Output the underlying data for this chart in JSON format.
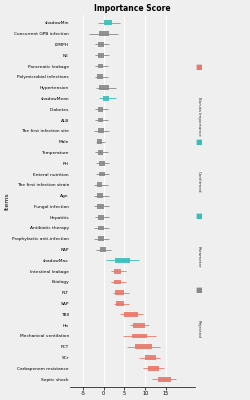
{
  "title": "Importance Score",
  "items": [
    "shadowMin",
    "Concurrent GPB infection",
    "LYMPH",
    "NE",
    "Pancreatic leakage",
    "Polymicrobial infections",
    "Hypertension",
    "shadowMean",
    "Diabetes",
    "ALB",
    "The first infection site",
    "Male",
    "Temperature",
    "PH",
    "Enteral nutrition",
    "The first infection strain",
    "Age",
    "Fungal infection",
    "Hepatitis",
    "Antibiotic therapy",
    "Prophylactic anti-infection",
    "RAP",
    "shadowMax",
    "Intestinal leakage",
    "Etiology",
    "PLT",
    "SAP",
    "TBII",
    "Hb",
    "Mechanical ventilation",
    "PCT",
    "SCr",
    "Carbapenem resistance",
    "Septic shock"
  ],
  "box_centers": [
    3.0,
    2.5,
    2.2,
    2.2,
    2.1,
    2.1,
    2.5,
    2.8,
    2.1,
    2.1,
    2.2,
    2.0,
    2.1,
    2.3,
    2.3,
    2.0,
    2.1,
    2.1,
    2.2,
    2.2,
    2.2,
    2.4,
    4.8,
    4.2,
    4.2,
    4.4,
    4.5,
    5.8,
    6.8,
    6.8,
    7.3,
    8.1,
    8.5,
    9.8
  ],
  "box_widths": [
    1.0,
    1.2,
    0.7,
    0.7,
    0.6,
    0.7,
    1.2,
    0.7,
    0.6,
    0.6,
    0.8,
    0.5,
    0.6,
    0.7,
    0.7,
    0.6,
    0.7,
    0.8,
    0.7,
    0.7,
    0.7,
    0.7,
    1.8,
    0.9,
    0.9,
    1.0,
    1.0,
    1.6,
    1.4,
    1.8,
    2.0,
    1.3,
    1.3,
    1.6
  ],
  "whisker_low": [
    1.8,
    0.8,
    1.5,
    1.5,
    1.5,
    1.5,
    1.6,
    2.0,
    1.5,
    1.5,
    1.4,
    1.6,
    1.5,
    1.6,
    1.6,
    1.4,
    1.4,
    1.3,
    1.5,
    1.4,
    1.4,
    1.6,
    2.8,
    3.4,
    3.4,
    3.6,
    3.7,
    4.5,
    5.7,
    4.8,
    5.3,
    6.8,
    7.3,
    8.3
  ],
  "whisker_high": [
    4.5,
    4.2,
    3.2,
    3.2,
    3.0,
    3.0,
    4.0,
    4.0,
    3.0,
    3.0,
    3.2,
    2.7,
    3.0,
    3.2,
    3.2,
    3.0,
    3.2,
    3.2,
    3.2,
    3.2,
    3.2,
    3.4,
    6.8,
    5.2,
    5.2,
    5.6,
    5.6,
    7.2,
    8.0,
    8.8,
    9.3,
    9.3,
    9.8,
    11.2
  ],
  "colors": [
    "#3bbcb8",
    "#888888",
    "#888888",
    "#888888",
    "#888888",
    "#888888",
    "#888888",
    "#3bbcb8",
    "#888888",
    "#888888",
    "#888888",
    "#888888",
    "#888888",
    "#888888",
    "#888888",
    "#888888",
    "#888888",
    "#888888",
    "#888888",
    "#888888",
    "#888888",
    "#888888",
    "#3bbcb8",
    "#e8786a",
    "#e8786a",
    "#e8786a",
    "#e8786a",
    "#e8786a",
    "#e8786a",
    "#e8786a",
    "#e8786a",
    "#e8786a",
    "#e8786a",
    "#e8786a"
  ],
  "xlim": [
    -1.5,
    13.5
  ],
  "xtick_vals": [
    -5,
    0,
    5,
    10,
    15
  ],
  "xtick_display": [
    0,
    2.5,
    5,
    7.5,
    10
  ],
  "xtick_labels": [
    "-5",
    "0",
    "5",
    "10",
    "15"
  ],
  "bg_color": "#efefef",
  "grid_color": "#ffffff",
  "legend_labels": [
    "Boruta Importance",
    "Confirmed",
    "Parameter",
    "Rejected"
  ],
  "legend_colors": [
    "#e8786a",
    "#3bbcb8",
    "#3bbcb8",
    "#888888"
  ]
}
